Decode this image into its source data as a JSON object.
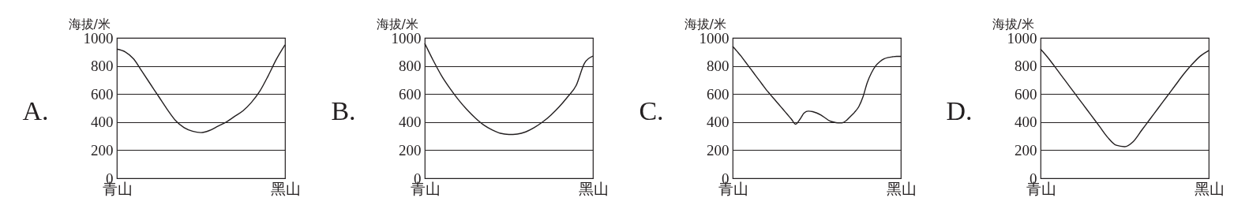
{
  "chart_data": [
    {
      "type": "line",
      "annotations": [
        "A."
      ],
      "ylabel": "海拔/米",
      "color": "#231f20",
      "ylim": [
        0,
        1000
      ],
      "yticks": [
        0,
        200,
        400,
        600,
        800,
        1000
      ],
      "grid": "y",
      "categories": [
        "青山",
        null,
        null,
        null,
        null,
        null,
        null,
        null,
        null,
        null,
        null,
        null,
        null,
        null,
        null,
        null,
        null,
        null,
        null,
        null,
        "黑山"
      ],
      "values": [
        920,
        900,
        850,
        760,
        670,
        580,
        490,
        410,
        360,
        335,
        325,
        340,
        370,
        400,
        440,
        480,
        540,
        620,
        730,
        850,
        950
      ]
    },
    {
      "type": "line",
      "annotations": [
        "B."
      ],
      "ylabel": "海拔/米",
      "color": "#231f20",
      "ylim": [
        0,
        1000
      ],
      "yticks": [
        0,
        200,
        400,
        600,
        800,
        1000
      ],
      "grid": "y",
      "categories": [
        "青山",
        null,
        null,
        null,
        null,
        null,
        null,
        null,
        null,
        null,
        null,
        null,
        null,
        null,
        null,
        null,
        null,
        null,
        null,
        null,
        "黑山"
      ],
      "values": [
        960,
        840,
        730,
        640,
        560,
        490,
        430,
        380,
        345,
        320,
        312,
        315,
        330,
        360,
        400,
        450,
        510,
        580,
        660,
        820,
        870
      ]
    },
    {
      "type": "line",
      "annotations": [
        "C."
      ],
      "ylabel": "海拔/米",
      "color": "#231f20",
      "ylim": [
        0,
        1000
      ],
      "yticks": [
        0,
        200,
        400,
        600,
        800,
        1000
      ],
      "grid": "y",
      "categories": [
        "青山",
        null,
        null,
        null,
        null,
        null,
        null,
        null,
        null,
        null,
        null,
        null,
        null,
        null,
        null,
        null,
        null,
        null,
        null,
        null,
        null,
        null,
        null,
        null,
        null,
        null,
        null,
        null,
        null,
        null,
        null,
        null,
        null,
        null,
        null,
        null,
        null,
        null,
        null,
        null,
        "黑山"
      ],
      "values": [
        940,
        905,
        870,
        830,
        790,
        750,
        710,
        670,
        630,
        595,
        560,
        525,
        490,
        455,
        420,
        385,
        420,
        465,
        478,
        475,
        465,
        450,
        430,
        410,
        400,
        395,
        395,
        410,
        440,
        470,
        510,
        580,
        680,
        750,
        800,
        830,
        850,
        860,
        865,
        868,
        868
      ]
    },
    {
      "type": "line",
      "annotations": [
        "D."
      ],
      "ylabel": "海拔/米",
      "color": "#231f20",
      "ylim": [
        0,
        1000
      ],
      "yticks": [
        0,
        200,
        400,
        600,
        800,
        1000
      ],
      "grid": "y",
      "categories": [
        "青山",
        null,
        null,
        null,
        null,
        null,
        null,
        null,
        null,
        null,
        null,
        null,
        null,
        null,
        null,
        null,
        null,
        null,
        null,
        null,
        "黑山"
      ],
      "values": [
        920,
        850,
        770,
        690,
        610,
        530,
        450,
        370,
        290,
        235,
        225,
        260,
        340,
        420,
        500,
        580,
        660,
        740,
        810,
        870,
        910
      ]
    }
  ]
}
